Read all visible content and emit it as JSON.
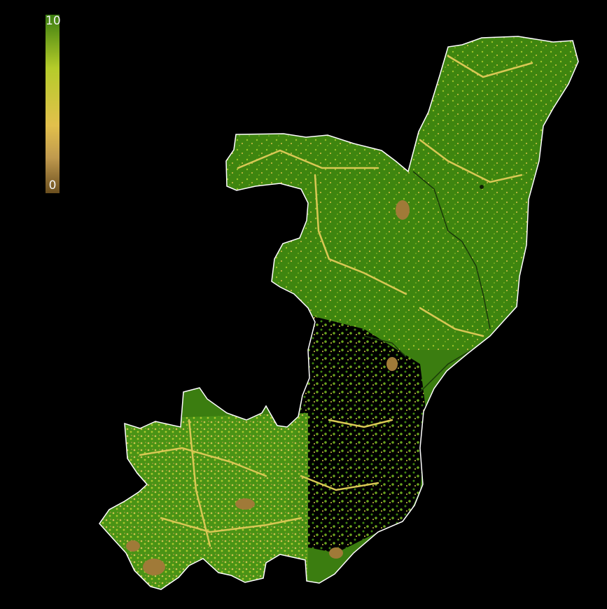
{
  "map": {
    "background_color": "#000000",
    "border_color": "#ffffff",
    "nodata_color": "#000000",
    "river_color": "#1a3a0a"
  },
  "legend": {
    "max_label": "10",
    "min_label": "0",
    "scale_min": 0,
    "scale_max": 10,
    "color_stops": [
      {
        "value": 10,
        "color": "#3b7d10"
      },
      {
        "value": 7.5,
        "color": "#b5cc2a"
      },
      {
        "value": 6,
        "color": "#e2c04c"
      },
      {
        "value": 3,
        "color": "#c09a4e"
      },
      {
        "value": 0,
        "color": "#6b4f1f"
      }
    ]
  }
}
